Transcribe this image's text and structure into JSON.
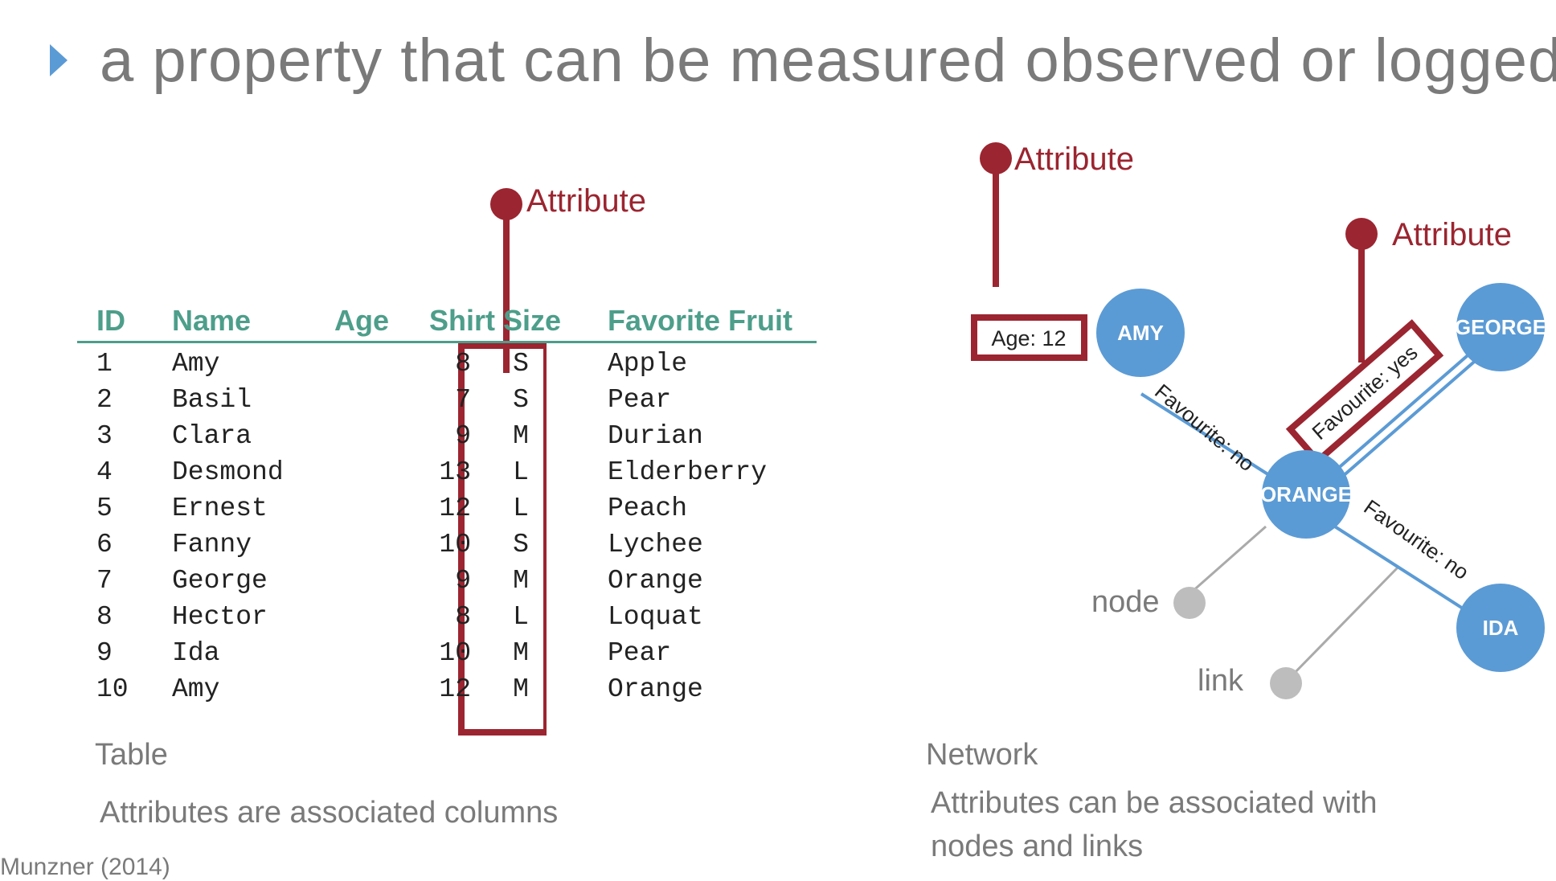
{
  "heading": "a property that can be measured observed or logged",
  "table": {
    "columns": [
      "ID",
      "Name",
      "Age",
      "Shirt Size",
      "Favorite Fruit"
    ],
    "rows": [
      [
        "1",
        "Amy",
        "8",
        "S",
        "Apple"
      ],
      [
        "2",
        "Basil",
        "7",
        "S",
        "Pear"
      ],
      [
        "3",
        "Clara",
        "9",
        "M",
        "Durian"
      ],
      [
        "4",
        "Desmond",
        "13",
        "L",
        "Elderberry"
      ],
      [
        "5",
        "Ernest",
        "12",
        "L",
        "Peach"
      ],
      [
        "6",
        "Fanny",
        "10",
        "S",
        "Lychee"
      ],
      [
        "7",
        "George",
        "9",
        "M",
        "Orange"
      ],
      [
        "8",
        "Hector",
        "8",
        "L",
        "Loquat"
      ],
      [
        "9",
        "Ida",
        "10",
        "M",
        "Pear"
      ],
      [
        "10",
        "Amy",
        "12",
        "M",
        "Orange"
      ]
    ],
    "attribute_label": "Attribute",
    "caption": "Table",
    "description": "Attributes are associated columns"
  },
  "network": {
    "attribute_label_node": "Attribute",
    "attribute_label_link": "Attribute",
    "node_attr": "Age: 12",
    "nodes": {
      "amy": "AMY",
      "george": "GEORGE",
      "orange": "ORANGE",
      "ida": "IDA"
    },
    "edges": {
      "amy_orange": "Favourite: no",
      "george_orange": "Favourite: yes",
      "orange_ida": "Favourite: no"
    },
    "legend_node": "node",
    "legend_link": "link",
    "caption": "Network",
    "description_line1": "Attributes can be associated with",
    "description_line2": "nodes and links"
  },
  "citation": "Munzner (2014)",
  "colors": {
    "accent_red": "#9b2530",
    "node_blue": "#5b9bd5",
    "header_green": "#4d9e8a",
    "bullet_blue": "#5b9bd5",
    "gray": "#7a7a7a"
  }
}
